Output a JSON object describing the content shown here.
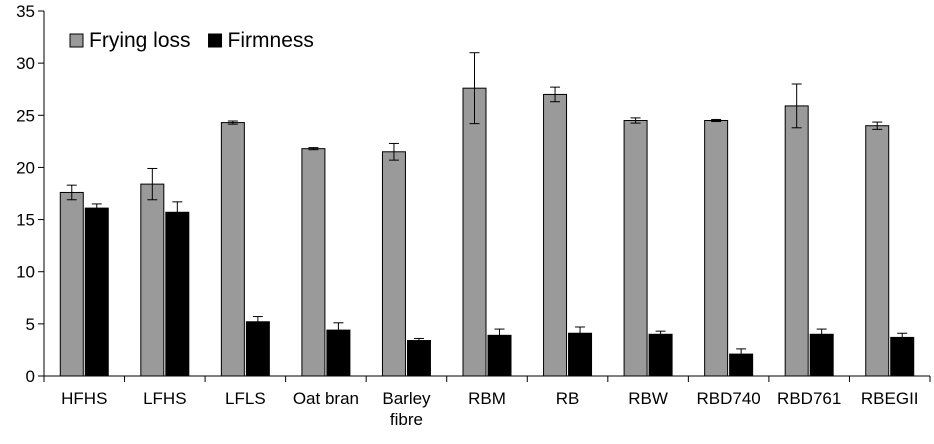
{
  "chart_data": {
    "type": "bar",
    "title": "",
    "xlabel": "",
    "ylabel": "",
    "ylim": [
      0,
      35
    ],
    "yticks": [
      0,
      5,
      10,
      15,
      20,
      25,
      30,
      35
    ],
    "ytick_labels": [
      "0",
      "5",
      "10",
      "15",
      "20",
      "25",
      "30",
      "35"
    ],
    "grid": false,
    "legend_position": "top-left",
    "categories": [
      "HFHS",
      "LFHS",
      "LFLS",
      "Oat bran",
      "Barley fibre",
      "RBM",
      "RB",
      "RBW",
      "RBD740",
      "RBD761",
      "RBEGII"
    ],
    "category_lines": [
      [
        "HFHS"
      ],
      [
        "LFHS"
      ],
      [
        "LFLS"
      ],
      [
        "Oat bran"
      ],
      [
        "Barley",
        "fibre"
      ],
      [
        "RBM"
      ],
      [
        "RB"
      ],
      [
        "RBW"
      ],
      [
        "RBD740"
      ],
      [
        "RBD761"
      ],
      [
        "RBEGII"
      ]
    ],
    "series": [
      {
        "name": "Frying loss",
        "color": "#9a9a9a",
        "values": [
          17.6,
          18.4,
          24.3,
          21.8,
          21.5,
          27.6,
          27.0,
          24.5,
          24.5,
          25.9,
          24.0
        ],
        "errors": [
          0.7,
          1.5,
          0.15,
          0.1,
          0.8,
          3.4,
          0.7,
          0.25,
          0.1,
          2.1,
          0.35
        ]
      },
      {
        "name": "Firmness",
        "color": "#000000",
        "values": [
          16.1,
          15.7,
          5.2,
          4.4,
          3.4,
          3.9,
          4.1,
          4.0,
          2.1,
          4.0,
          3.7
        ],
        "errors": [
          0.4,
          1.0,
          0.5,
          0.7,
          0.2,
          0.6,
          0.6,
          0.3,
          0.5,
          0.5,
          0.4
        ]
      }
    ]
  }
}
